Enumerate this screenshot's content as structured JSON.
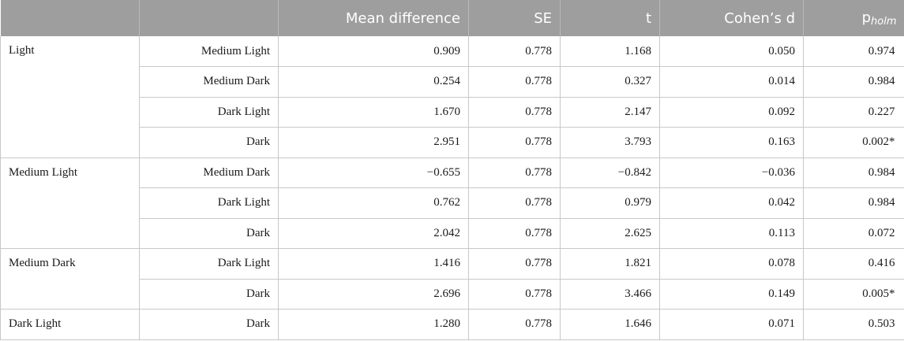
{
  "header": {
    "col0": "",
    "col1": "",
    "mean_diff": "Mean difference",
    "se": "SE",
    "t": "t",
    "cohens_d": "Cohen’s d",
    "p_main": "p",
    "p_sub": "holm"
  },
  "groups": [
    {
      "label": "Light",
      "rows": [
        {
          "comparison": "Medium Light",
          "mean_diff": "0.909",
          "se": "0.778",
          "t": "1.168",
          "d": "0.050",
          "p": "0.974"
        },
        {
          "comparison": "Medium Dark",
          "mean_diff": "0.254",
          "se": "0.778",
          "t": "0.327",
          "d": "0.014",
          "p": "0.984"
        },
        {
          "comparison": "Dark Light",
          "mean_diff": "1.670",
          "se": "0.778",
          "t": "2.147",
          "d": "0.092",
          "p": "0.227"
        },
        {
          "comparison": "Dark",
          "mean_diff": "2.951",
          "se": "0.778",
          "t": "3.793",
          "d": "0.163",
          "p": "0.002*"
        }
      ]
    },
    {
      "label": "Medium Light",
      "rows": [
        {
          "comparison": "Medium Dark",
          "mean_diff": "−0.655",
          "se": "0.778",
          "t": "−0.842",
          "d": "−0.036",
          "p": "0.984"
        },
        {
          "comparison": "Dark Light",
          "mean_diff": "0.762",
          "se": "0.778",
          "t": "0.979",
          "d": "0.042",
          "p": "0.984"
        },
        {
          "comparison": "Dark",
          "mean_diff": "2.042",
          "se": "0.778",
          "t": "2.625",
          "d": "0.113",
          "p": "0.072"
        }
      ]
    },
    {
      "label": "Medium Dark",
      "rows": [
        {
          "comparison": "Dark Light",
          "mean_diff": "1.416",
          "se": "0.778",
          "t": "1.821",
          "d": "0.078",
          "p": "0.416"
        },
        {
          "comparison": "Dark",
          "mean_diff": "2.696",
          "se": "0.778",
          "t": "3.466",
          "d": "0.149",
          "p": "0.005*"
        }
      ]
    },
    {
      "label": "Dark Light",
      "rows": [
        {
          "comparison": "Dark",
          "mean_diff": "1.280",
          "se": "0.778",
          "t": "1.646",
          "d": "0.071",
          "p": "0.503"
        }
      ]
    }
  ],
  "colors": {
    "header_bg": "#9e9e9e",
    "header_text": "#ffffff",
    "grid": "#c8c8c8"
  }
}
